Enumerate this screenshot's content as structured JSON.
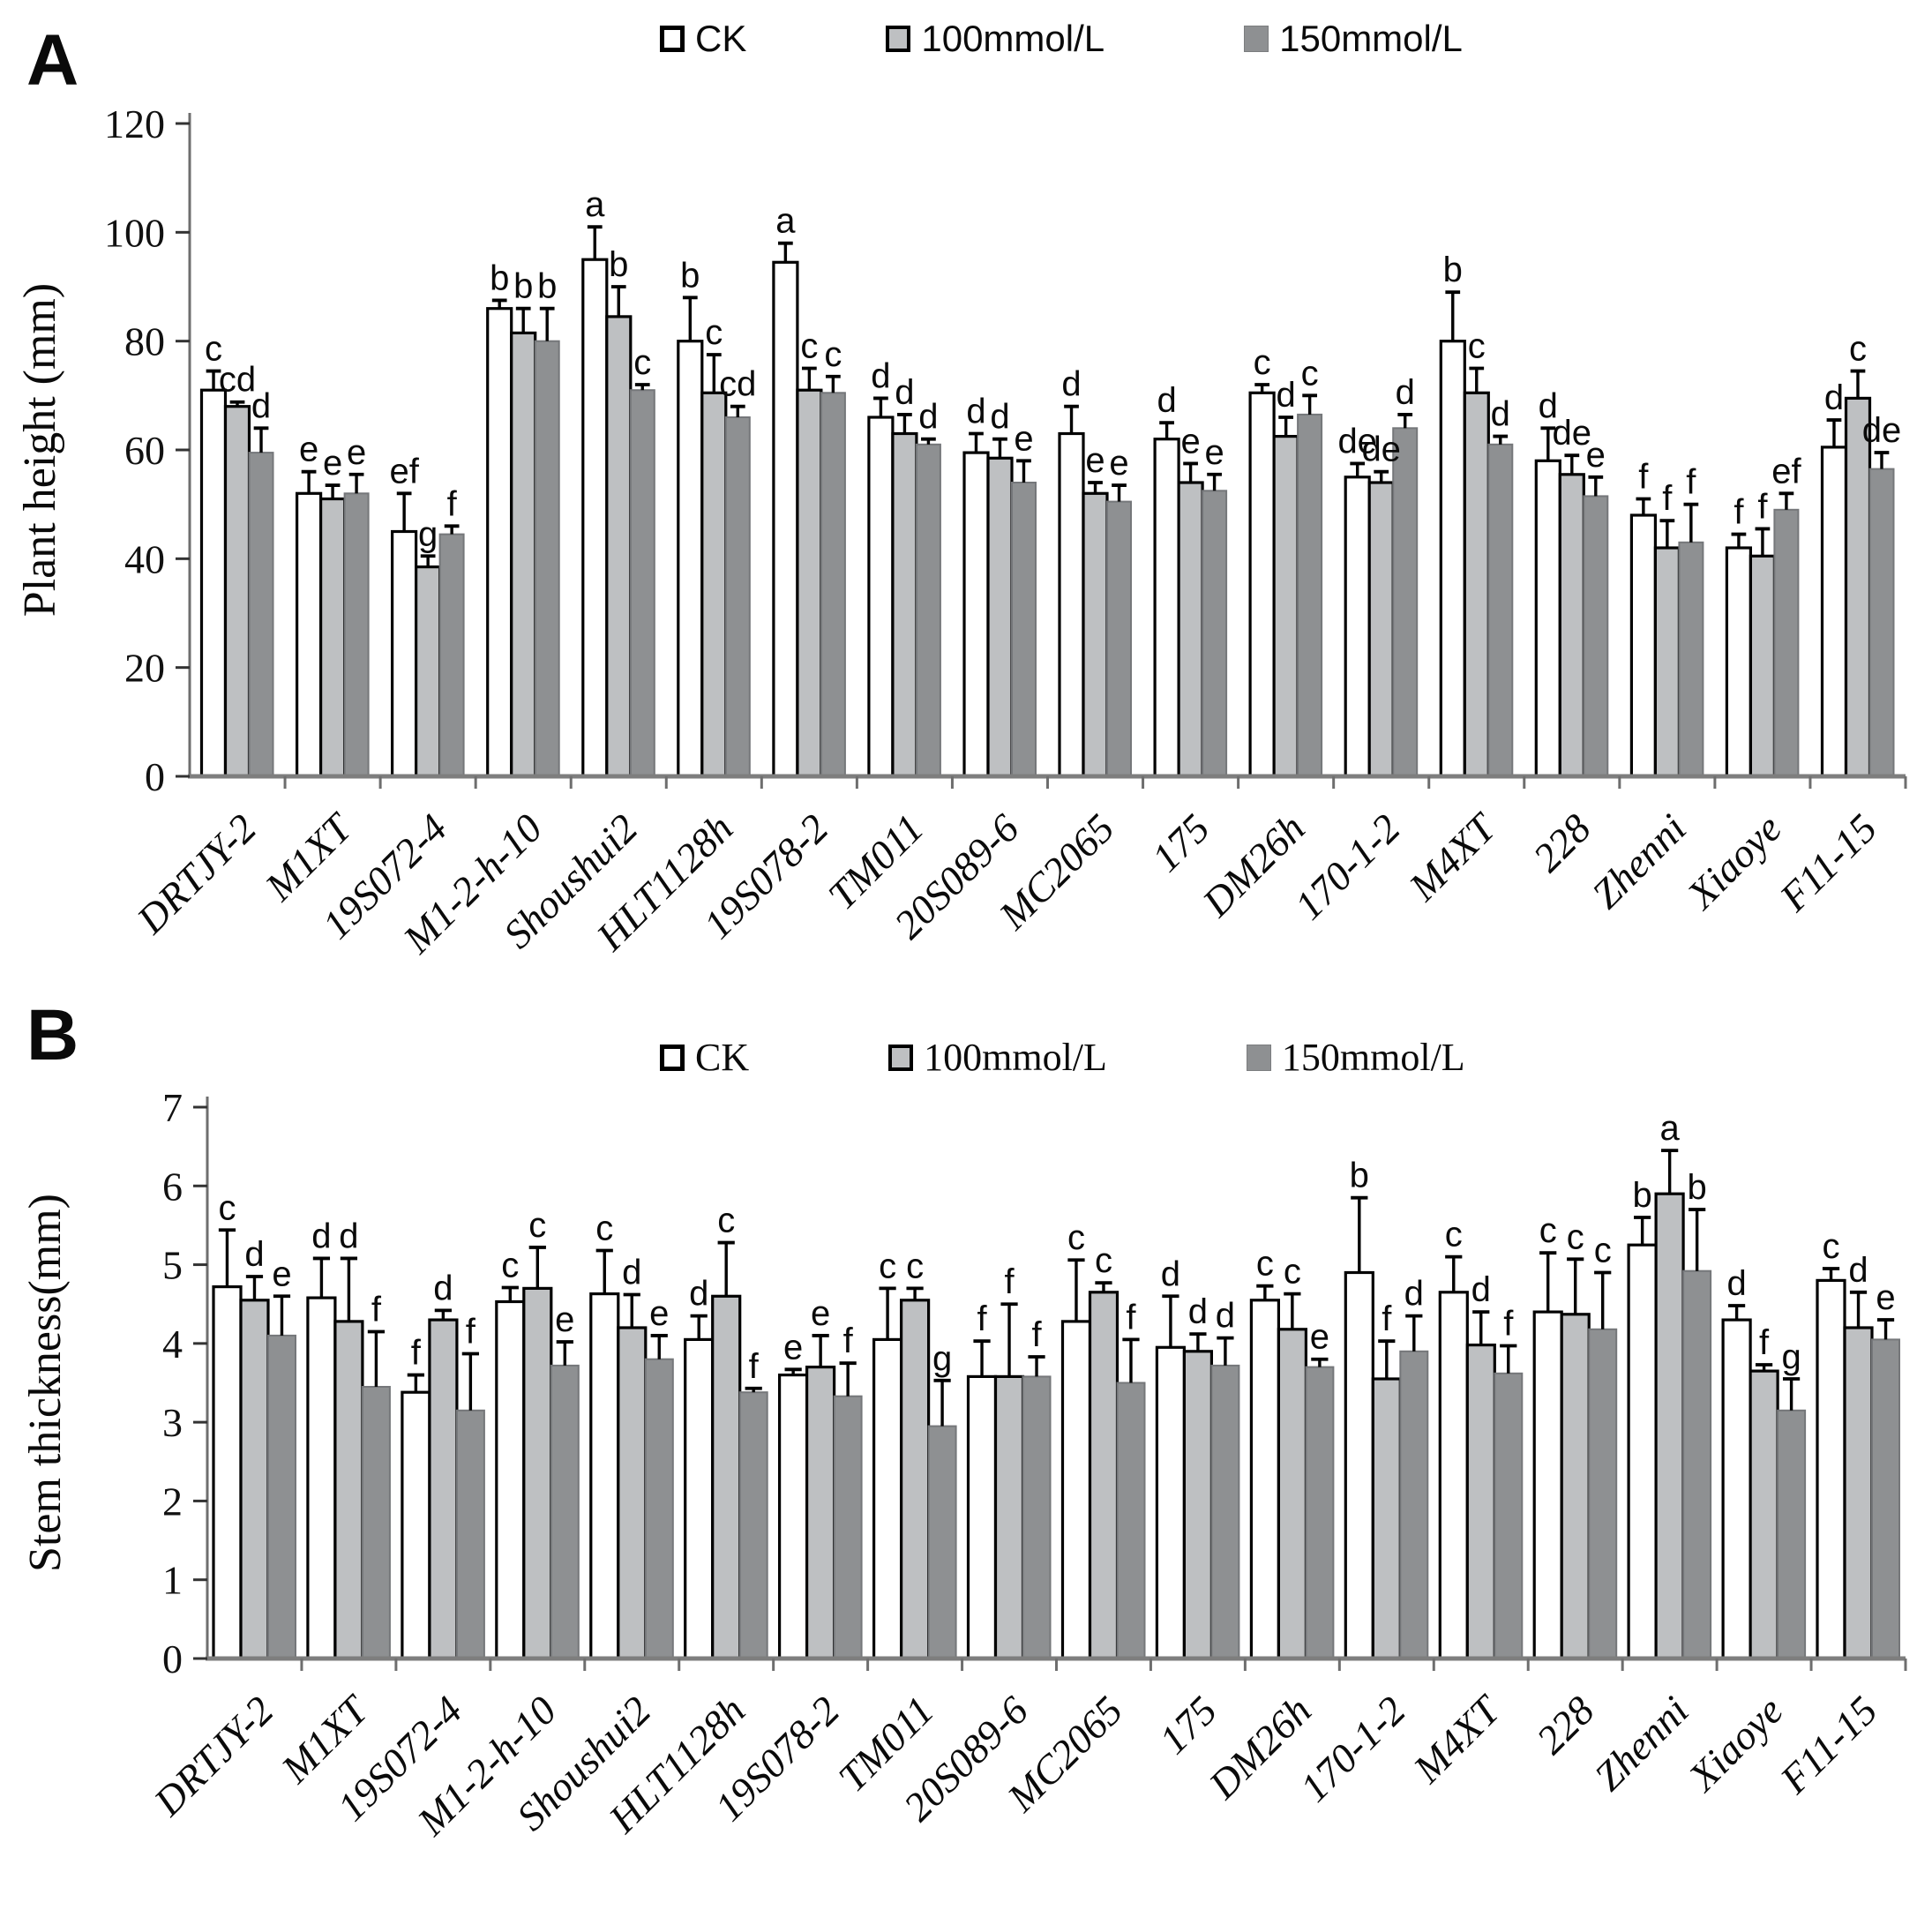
{
  "figure": {
    "kind": "two-panel grouped bar figure with error bars and significance letters"
  },
  "chart_data": [
    {
      "type": "bar",
      "panel_label": "A",
      "title": "",
      "xlabel": "",
      "ylabel": "Plant height (mm)",
      "ylim": [
        0,
        120
      ],
      "ytick_step": 20,
      "grid": false,
      "legend_position": "top-center",
      "error_bars": "upper",
      "categories": [
        "DRTJY-2",
        "M1XT",
        "19S072-4",
        "M1-2-h-10",
        "Shoushui2",
        "HLT1128h",
        "19S078-2",
        "TM011",
        "20S089-6",
        "MC2065",
        "175",
        "DM26h",
        "170-1-2",
        "M4XT",
        "228",
        "Zhenni",
        "Xiaoye",
        "F11-15"
      ],
      "series": [
        {
          "name": "CK",
          "fill": "#ffffff",
          "stroke": "#000000",
          "values": [
            71,
            52,
            45,
            86,
            95,
            80,
            94.5,
            66,
            59.5,
            63,
            62,
            70.5,
            55,
            80,
            58,
            48,
            42,
            60.5
          ],
          "errors": [
            3.5,
            4,
            7,
            1.5,
            6,
            8,
            3.5,
            3.5,
            3.5,
            5,
            3,
            1.5,
            2.5,
            9,
            6,
            3,
            2.5,
            5
          ],
          "letters": [
            "c",
            "e",
            "ef",
            "b",
            "a",
            "b",
            "a",
            "d",
            "d",
            "d",
            "d",
            "c",
            "de",
            "b",
            "d",
            "f",
            "f",
            "d"
          ]
        },
        {
          "name": "100mmol/L",
          "fill": "#bec0c2",
          "stroke": "#000000",
          "values": [
            68,
            51,
            38.5,
            81.5,
            84.5,
            70.5,
            71,
            63,
            58.5,
            52,
            54,
            62.5,
            54,
            70.5,
            55.5,
            42,
            40.5,
            69.5
          ],
          "errors": [
            0.8,
            2.5,
            2,
            4.5,
            5.5,
            7,
            4,
            3.5,
            3.5,
            2,
            3.5,
            3.5,
            2,
            4.5,
            3.5,
            5,
            5,
            5
          ],
          "letters": [
            "cd",
            "e",
            "g",
            "b",
            "b",
            "c",
            "c",
            "d",
            "d",
            "e",
            "e",
            "d",
            "de",
            "c",
            "de",
            "f",
            "f",
            "c"
          ]
        },
        {
          "name": "150mmol/L",
          "fill": "#8e9092",
          "stroke": "#75777a",
          "values": [
            59.5,
            52,
            44.5,
            80,
            71,
            66,
            70.5,
            61,
            54,
            50.5,
            52.5,
            66.5,
            64,
            61,
            51.5,
            43,
            49,
            56.5
          ],
          "errors": [
            4.5,
            3.5,
            1.5,
            6,
            1,
            2,
            3,
            1,
            4,
            3,
            3,
            3.5,
            2.5,
            1.5,
            3.5,
            7,
            3,
            3
          ],
          "letters": [
            "d",
            "e",
            "f",
            "b",
            "c",
            "cd",
            "c",
            "d",
            "e",
            "e",
            "e",
            "c",
            "d",
            "d",
            "e",
            "f",
            "ef",
            "de"
          ]
        }
      ]
    },
    {
      "type": "bar",
      "panel_label": "B",
      "title": "",
      "xlabel": "",
      "ylabel": "Stem thickness(mm)",
      "ylim": [
        0,
        7
      ],
      "ytick_step": 1,
      "grid": false,
      "legend_position": "top-center",
      "error_bars": "upper",
      "categories": [
        "DRTJY-2",
        "M1XT",
        "19S072-4",
        "M1-2-h-10",
        "Shoushui2",
        "HLT1128h",
        "19S078-2",
        "TM011",
        "20S089-6",
        "MC2065",
        "175",
        "DM26h",
        "170-1-2",
        "M4XT",
        "228",
        "Zhenni",
        "Xiaoye",
        "F11-15"
      ],
      "series": [
        {
          "name": "CK",
          "fill": "#ffffff",
          "stroke": "#000000",
          "values": [
            4.72,
            4.58,
            3.38,
            4.53,
            4.63,
            4.05,
            3.6,
            4.05,
            3.58,
            4.28,
            3.95,
            4.55,
            4.9,
            4.65,
            4.4,
            5.25,
            4.3,
            4.8
          ],
          "errors": [
            0.72,
            0.5,
            0.22,
            0.18,
            0.55,
            0.3,
            0.07,
            0.65,
            0.45,
            0.78,
            0.65,
            0.18,
            0.95,
            0.45,
            0.75,
            0.35,
            0.18,
            0.15
          ],
          "letters": [
            "c",
            "d",
            "f",
            "c",
            "c",
            "d",
            "e",
            "c",
            "f",
            "c",
            "d",
            "c",
            "b",
            "c",
            "c",
            "b",
            "d",
            "c"
          ]
        },
        {
          "name": "100mmol/L",
          "fill": "#bec0c2",
          "stroke": "#000000",
          "values": [
            4.55,
            4.28,
            4.3,
            4.7,
            4.2,
            4.6,
            3.7,
            4.55,
            3.58,
            4.65,
            3.9,
            4.18,
            3.55,
            3.98,
            4.37,
            5.9,
            3.65,
            4.2
          ],
          "errors": [
            0.3,
            0.8,
            0.12,
            0.52,
            0.42,
            0.68,
            0.4,
            0.15,
            0.92,
            0.12,
            0.22,
            0.45,
            0.48,
            0.42,
            0.7,
            0.55,
            0.08,
            0.45
          ],
          "letters": [
            "d",
            "d",
            "d",
            "c",
            "d",
            "c",
            "e",
            "c",
            "f",
            "c",
            "d",
            "c",
            "f",
            "d",
            "c",
            "a",
            "f",
            "d"
          ]
        },
        {
          "name": "150mmol/L",
          "fill": "#8e9092",
          "stroke": "#75777a",
          "values": [
            4.1,
            3.45,
            3.15,
            3.72,
            3.8,
            3.38,
            3.33,
            2.95,
            3.58,
            3.5,
            3.72,
            3.7,
            3.9,
            3.62,
            4.18,
            4.92,
            3.15,
            4.05
          ],
          "errors": [
            0.5,
            0.7,
            0.72,
            0.3,
            0.3,
            0.05,
            0.42,
            0.58,
            0.25,
            0.55,
            0.35,
            0.1,
            0.45,
            0.35,
            0.72,
            0.78,
            0.4,
            0.25
          ],
          "letters": [
            "e",
            "f",
            "f",
            "e",
            "e",
            "f",
            "f",
            "g",
            "f",
            "f",
            "d",
            "e",
            "d",
            "f",
            "c",
            "b",
            "g",
            "e"
          ]
        }
      ]
    }
  ]
}
